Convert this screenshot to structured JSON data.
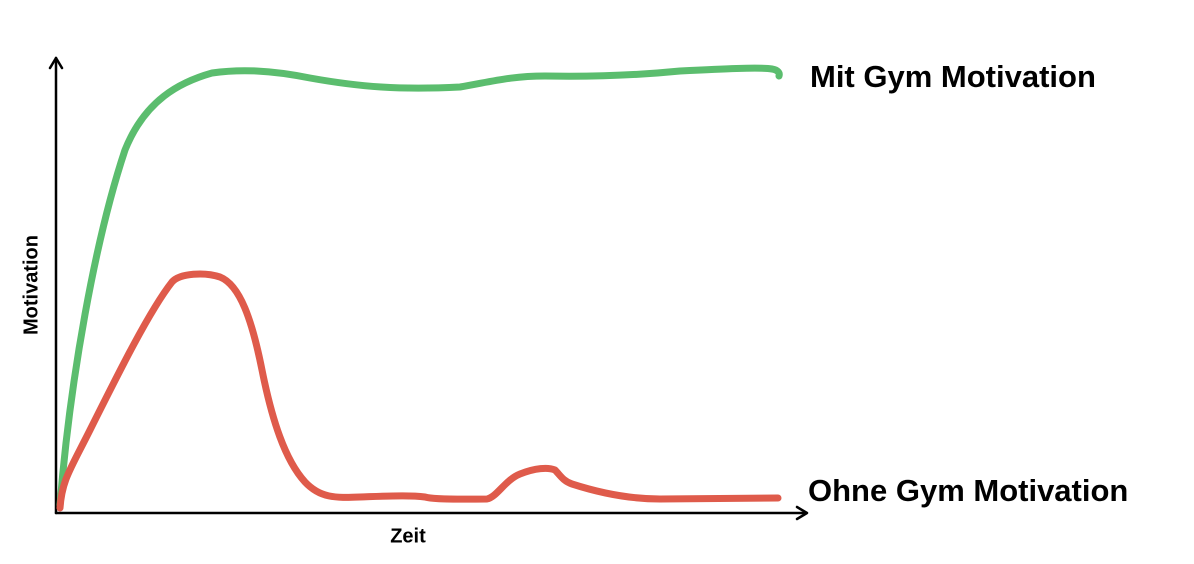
{
  "axes": {
    "y_label": "Motivation",
    "x_label": "Zeit"
  },
  "curves": [
    {
      "label": "Mit Gym Motivation"
    },
    {
      "label": "Ohne Gym Motivation"
    }
  ]
}
